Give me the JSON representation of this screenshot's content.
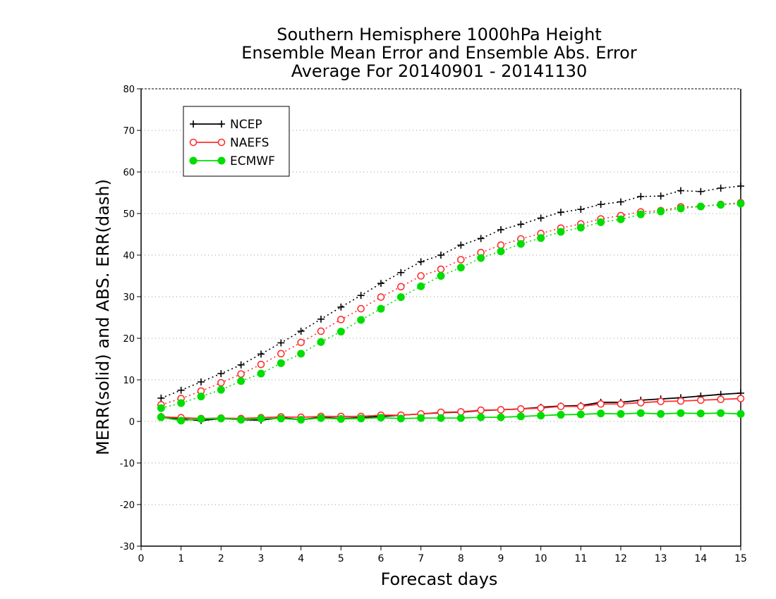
{
  "chart_data": {
    "type": "line",
    "title": [
      "Southern Hemisphere 1000hPa Height",
      "Ensemble Mean Error and Ensemble Abs. Error",
      "Average For 20140901 - 20141130"
    ],
    "xlabel": "Forecast days",
    "ylabel": "MERR(solid) and ABS. ERR(dash)",
    "xlim": [
      0,
      15
    ],
    "ylim": [
      -30,
      80
    ],
    "xticks": [
      0,
      1,
      2,
      3,
      4,
      5,
      6,
      7,
      8,
      9,
      10,
      11,
      12,
      13,
      14,
      15
    ],
    "yticks": [
      -30,
      -20,
      -10,
      0,
      10,
      20,
      30,
      40,
      50,
      60,
      70,
      80
    ],
    "grid": "horizontal dotted",
    "legend_position": "top-left",
    "x": [
      0.5,
      1,
      1.5,
      2,
      2.5,
      3,
      3.5,
      4,
      4.5,
      5,
      5.5,
      6,
      6.5,
      7,
      7.5,
      8,
      8.5,
      9,
      9.5,
      10,
      10.5,
      11,
      11.5,
      12,
      12.5,
      13,
      13.5,
      14,
      14.5,
      15
    ],
    "series": [
      {
        "name": "NCEP",
        "color": "#000000",
        "marker": "plus",
        "abs_err_dash": [
          5.6,
          7.5,
          9.5,
          11.5,
          13.6,
          16.2,
          18.9,
          21.7,
          24.6,
          27.5,
          30.3,
          33.2,
          35.8,
          38.4,
          40.0,
          42.4,
          44.0,
          46.1,
          47.4,
          48.9,
          50.3,
          51.0,
          52.2,
          52.8,
          54.1,
          54.2,
          55.5,
          55.3,
          56.1,
          56.6
        ],
        "mean_err_solid": [
          1.2,
          0.6,
          0.2,
          0.7,
          0.4,
          0.3,
          0.9,
          0.4,
          1.0,
          0.7,
          0.9,
          1.2,
          1.5,
          1.8,
          2.1,
          2.2,
          2.6,
          2.8,
          3.0,
          3.4,
          3.7,
          3.8,
          4.6,
          4.6,
          5.1,
          5.4,
          5.7,
          6.1,
          6.5,
          6.8
        ]
      },
      {
        "name": "NAEFS",
        "color": "#ff3030",
        "marker": "open-circle",
        "abs_err_dash": [
          4.0,
          5.5,
          7.3,
          9.3,
          11.4,
          13.7,
          16.3,
          19.0,
          21.7,
          24.5,
          27.1,
          29.9,
          32.4,
          35.0,
          36.6,
          38.9,
          40.6,
          42.4,
          43.9,
          45.2,
          46.5,
          47.5,
          48.7,
          49.5,
          50.4,
          50.7,
          51.6,
          51.7,
          52.2,
          52.6
        ],
        "mean_err_solid": [
          1.1,
          0.9,
          0.7,
          0.8,
          0.7,
          0.9,
          1.1,
          1.0,
          1.2,
          1.2,
          1.2,
          1.5,
          1.5,
          1.8,
          2.2,
          2.3,
          2.7,
          2.8,
          3.0,
          3.2,
          3.6,
          3.6,
          4.2,
          4.2,
          4.5,
          4.8,
          4.9,
          5.1,
          5.3,
          5.5
        ]
      },
      {
        "name": "ECMWF",
        "color": "#00dd00",
        "marker": "filled-circle",
        "abs_err_dash": [
          3.2,
          4.4,
          6.0,
          7.6,
          9.7,
          11.5,
          14.0,
          16.3,
          19.1,
          21.6,
          24.4,
          27.1,
          29.9,
          32.5,
          35.0,
          37.0,
          39.3,
          40.9,
          42.7,
          44.1,
          45.6,
          46.6,
          47.9,
          48.6,
          49.8,
          50.5,
          51.2,
          51.7,
          52.1,
          52.4
        ],
        "mean_err_solid": [
          1.0,
          0.2,
          0.6,
          0.7,
          0.4,
          0.7,
          0.7,
          0.4,
          0.8,
          0.6,
          0.7,
          0.9,
          0.7,
          0.8,
          0.8,
          0.8,
          1.0,
          1.0,
          1.2,
          1.4,
          1.6,
          1.7,
          1.9,
          1.8,
          2.0,
          1.8,
          2.0,
          1.9,
          2.0,
          1.8
        ]
      }
    ]
  }
}
